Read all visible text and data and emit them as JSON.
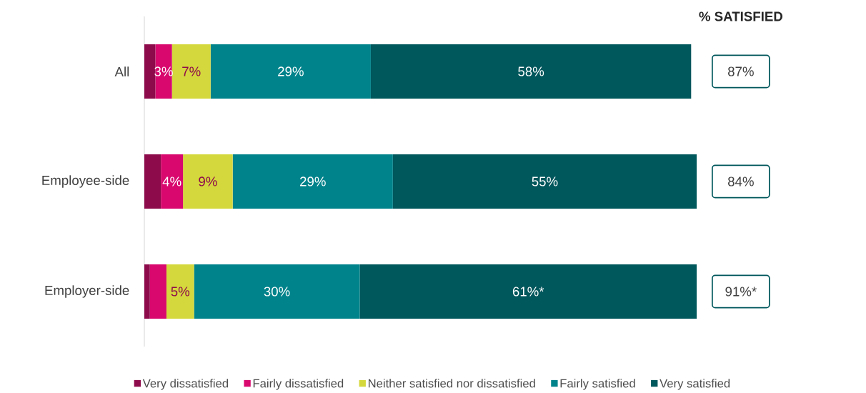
{
  "chart_data": {
    "type": "bar",
    "orientation": "horizontal",
    "stacked": true,
    "categories": [
      "All",
      "Employee-side",
      "Employer-side"
    ],
    "series": [
      {
        "name": "Very dissatisfied",
        "color": "#8e0b4b",
        "values": [
          2,
          3,
          1
        ],
        "value_labels": [
          null,
          null,
          null
        ]
      },
      {
        "name": "Fairly dissatisfied",
        "color": "#d8086e",
        "values": [
          3,
          4,
          3
        ],
        "value_labels": [
          "3%",
          "4%",
          null
        ]
      },
      {
        "name": "Neither satisfied nor dissatisfied",
        "color": "#d4d83c",
        "values": [
          7,
          9,
          5
        ],
        "value_labels": [
          "7%",
          "9%",
          "5%"
        ]
      },
      {
        "name": "Fairly satisfied",
        "color": "#00838b",
        "values": [
          29,
          29,
          30
        ],
        "value_labels": [
          "29%",
          "29%",
          "30%"
        ]
      },
      {
        "name": "Very satisfied",
        "color": "#00575c",
        "values": [
          58,
          55,
          61
        ],
        "value_labels": [
          "58%",
          "55%",
          "61%*"
        ]
      }
    ],
    "tick_labels": "y",
    "legend": "bottom",
    "annotations": [
      "% SATISFIED",
      "87%",
      "84%",
      "91%*"
    ]
  }
}
